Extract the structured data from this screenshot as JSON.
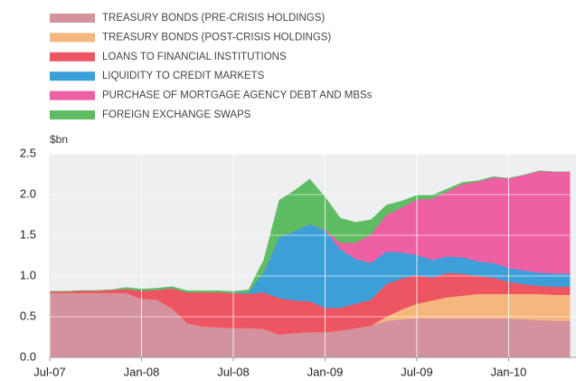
{
  "chart_data": {
    "type": "stacked-area",
    "y_label": "$bn",
    "categories": [
      "Jul-07",
      null,
      null,
      null,
      null,
      null,
      "Jan-08",
      null,
      null,
      null,
      null,
      null,
      "Jul-08",
      null,
      null,
      null,
      null,
      null,
      "Jan-09",
      null,
      null,
      null,
      null,
      null,
      "Jul-09",
      null,
      null,
      null,
      null,
      null,
      "Jan-10",
      null,
      null,
      null,
      null
    ],
    "ylim": [
      0,
      2.5
    ],
    "yticks": [
      {
        "value": 0,
        "label": "0.0"
      },
      0.5,
      {
        "value": 1,
        "label": "1.0"
      },
      1.5,
      {
        "value": 2,
        "label": "2.0"
      },
      2.5
    ],
    "grid": true,
    "series": [
      {
        "name": "TREASURY BONDS (PRE-CRISIS HOLDINGS)",
        "color": "#d4919e",
        "values": [
          0.79,
          0.79,
          0.79,
          0.79,
          0.79,
          0.79,
          0.72,
          0.71,
          0.6,
          0.42,
          0.38,
          0.37,
          0.36,
          0.36,
          0.35,
          0.28,
          0.3,
          0.31,
          0.31,
          0.33,
          0.36,
          0.39,
          0.45,
          0.47,
          0.48,
          0.48,
          0.48,
          0.48,
          0.48,
          0.48,
          0.48,
          0.47,
          0.46,
          0.45,
          0.45
        ]
      },
      {
        "name": "TREASURY BONDS (POST-CRISIS HOLDINGS)",
        "color": "#f5b77e",
        "values": [
          0,
          0,
          0,
          0,
          0,
          0,
          0,
          0,
          0,
          0,
          0,
          0,
          0,
          0,
          0,
          0,
          0,
          0,
          0,
          0,
          0,
          0,
          0.05,
          0.12,
          0.18,
          0.22,
          0.26,
          0.28,
          0.3,
          0.3,
          0.3,
          0.31,
          0.32,
          0.32,
          0.32
        ]
      },
      {
        "name": "LOANS TO FINANCIAL INSTITUTIONS",
        "color": "#ee5563",
        "values": [
          0.02,
          0.02,
          0.03,
          0.03,
          0.04,
          0.05,
          0.1,
          0.12,
          0.25,
          0.38,
          0.42,
          0.43,
          0.43,
          0.42,
          0.45,
          0.45,
          0.4,
          0.38,
          0.3,
          0.28,
          0.3,
          0.32,
          0.4,
          0.38,
          0.35,
          0.28,
          0.3,
          0.27,
          0.22,
          0.2,
          0.15,
          0.12,
          0.1,
          0.1,
          0.1
        ]
      },
      {
        "name": "LIQUIDITY TO CREDIT MARKETS",
        "color": "#3d9fd8",
        "values": [
          0,
          0,
          0,
          0,
          0,
          0,
          0,
          0,
          0,
          0,
          0,
          0,
          0,
          0.02,
          0.25,
          0.75,
          0.85,
          0.95,
          0.95,
          0.72,
          0.55,
          0.45,
          0.4,
          0.32,
          0.25,
          0.22,
          0.2,
          0.2,
          0.18,
          0.18,
          0.17,
          0.17,
          0.16,
          0.16,
          0.16
        ]
      },
      {
        "name": "PURCHASE OF MORTGAGE AGENCY DEBT AND MBSs",
        "color": "#ee5fa4",
        "values": [
          0,
          0,
          0,
          0,
          0,
          0,
          0,
          0,
          0,
          0,
          0,
          0,
          0,
          0,
          0,
          0,
          0,
          0,
          0.01,
          0.08,
          0.2,
          0.35,
          0.45,
          0.55,
          0.68,
          0.75,
          0.8,
          0.9,
          0.98,
          1.05,
          1.1,
          1.17,
          1.25,
          1.25,
          1.25
        ]
      },
      {
        "name": "FOREIGN EXCHANGE SWAPS",
        "color": "#5ebc63",
        "values": [
          0,
          0,
          0,
          0,
          0,
          0.02,
          0.02,
          0.02,
          0.02,
          0.02,
          0.02,
          0.02,
          0.02,
          0.03,
          0.15,
          0.45,
          0.5,
          0.55,
          0.4,
          0.3,
          0.25,
          0.18,
          0.12,
          0.08,
          0.05,
          0.04,
          0.03,
          0.02,
          0.01,
          0.01,
          0,
          0,
          0,
          0,
          0
        ]
      }
    ]
  }
}
